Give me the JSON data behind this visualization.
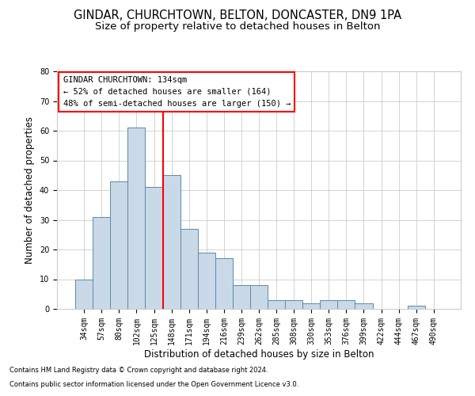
{
  "title": "GINDAR, CHURCHTOWN, BELTON, DONCASTER, DN9 1PA",
  "subtitle": "Size of property relative to detached houses in Belton",
  "xlabel": "Distribution of detached houses by size in Belton",
  "ylabel": "Number of detached properties",
  "footnote1": "Contains HM Land Registry data © Crown copyright and database right 2024.",
  "footnote2": "Contains public sector information licensed under the Open Government Licence v3.0.",
  "categories": [
    "34sqm",
    "57sqm",
    "80sqm",
    "102sqm",
    "125sqm",
    "148sqm",
    "171sqm",
    "194sqm",
    "216sqm",
    "239sqm",
    "262sqm",
    "285sqm",
    "308sqm",
    "330sqm",
    "353sqm",
    "376sqm",
    "399sqm",
    "422sqm",
    "444sqm",
    "467sqm",
    "490sqm"
  ],
  "values": [
    10,
    31,
    43,
    61,
    41,
    45,
    27,
    19,
    17,
    8,
    8,
    3,
    3,
    2,
    3,
    3,
    2,
    0,
    0,
    1,
    0
  ],
  "bar_color": "#c9d9e8",
  "bar_edge_color": "#5a8aaa",
  "vline_x": 4.5,
  "vline_color": "red",
  "annotation_box_text": "GINDAR CHURCHTOWN: 134sqm\n← 52% of detached houses are smaller (164)\n48% of semi-detached houses are larger (150) →",
  "ylim": [
    0,
    80
  ],
  "yticks": [
    0,
    10,
    20,
    30,
    40,
    50,
    60,
    70,
    80
  ],
  "background_color": "#ffffff",
  "grid_color": "#cccccc",
  "title_fontsize": 10.5,
  "subtitle_fontsize": 9.5,
  "xlabel_fontsize": 8.5,
  "ylabel_fontsize": 8.5,
  "tick_fontsize": 7,
  "annotation_fontsize": 7.5,
  "footnote_fontsize": 6
}
